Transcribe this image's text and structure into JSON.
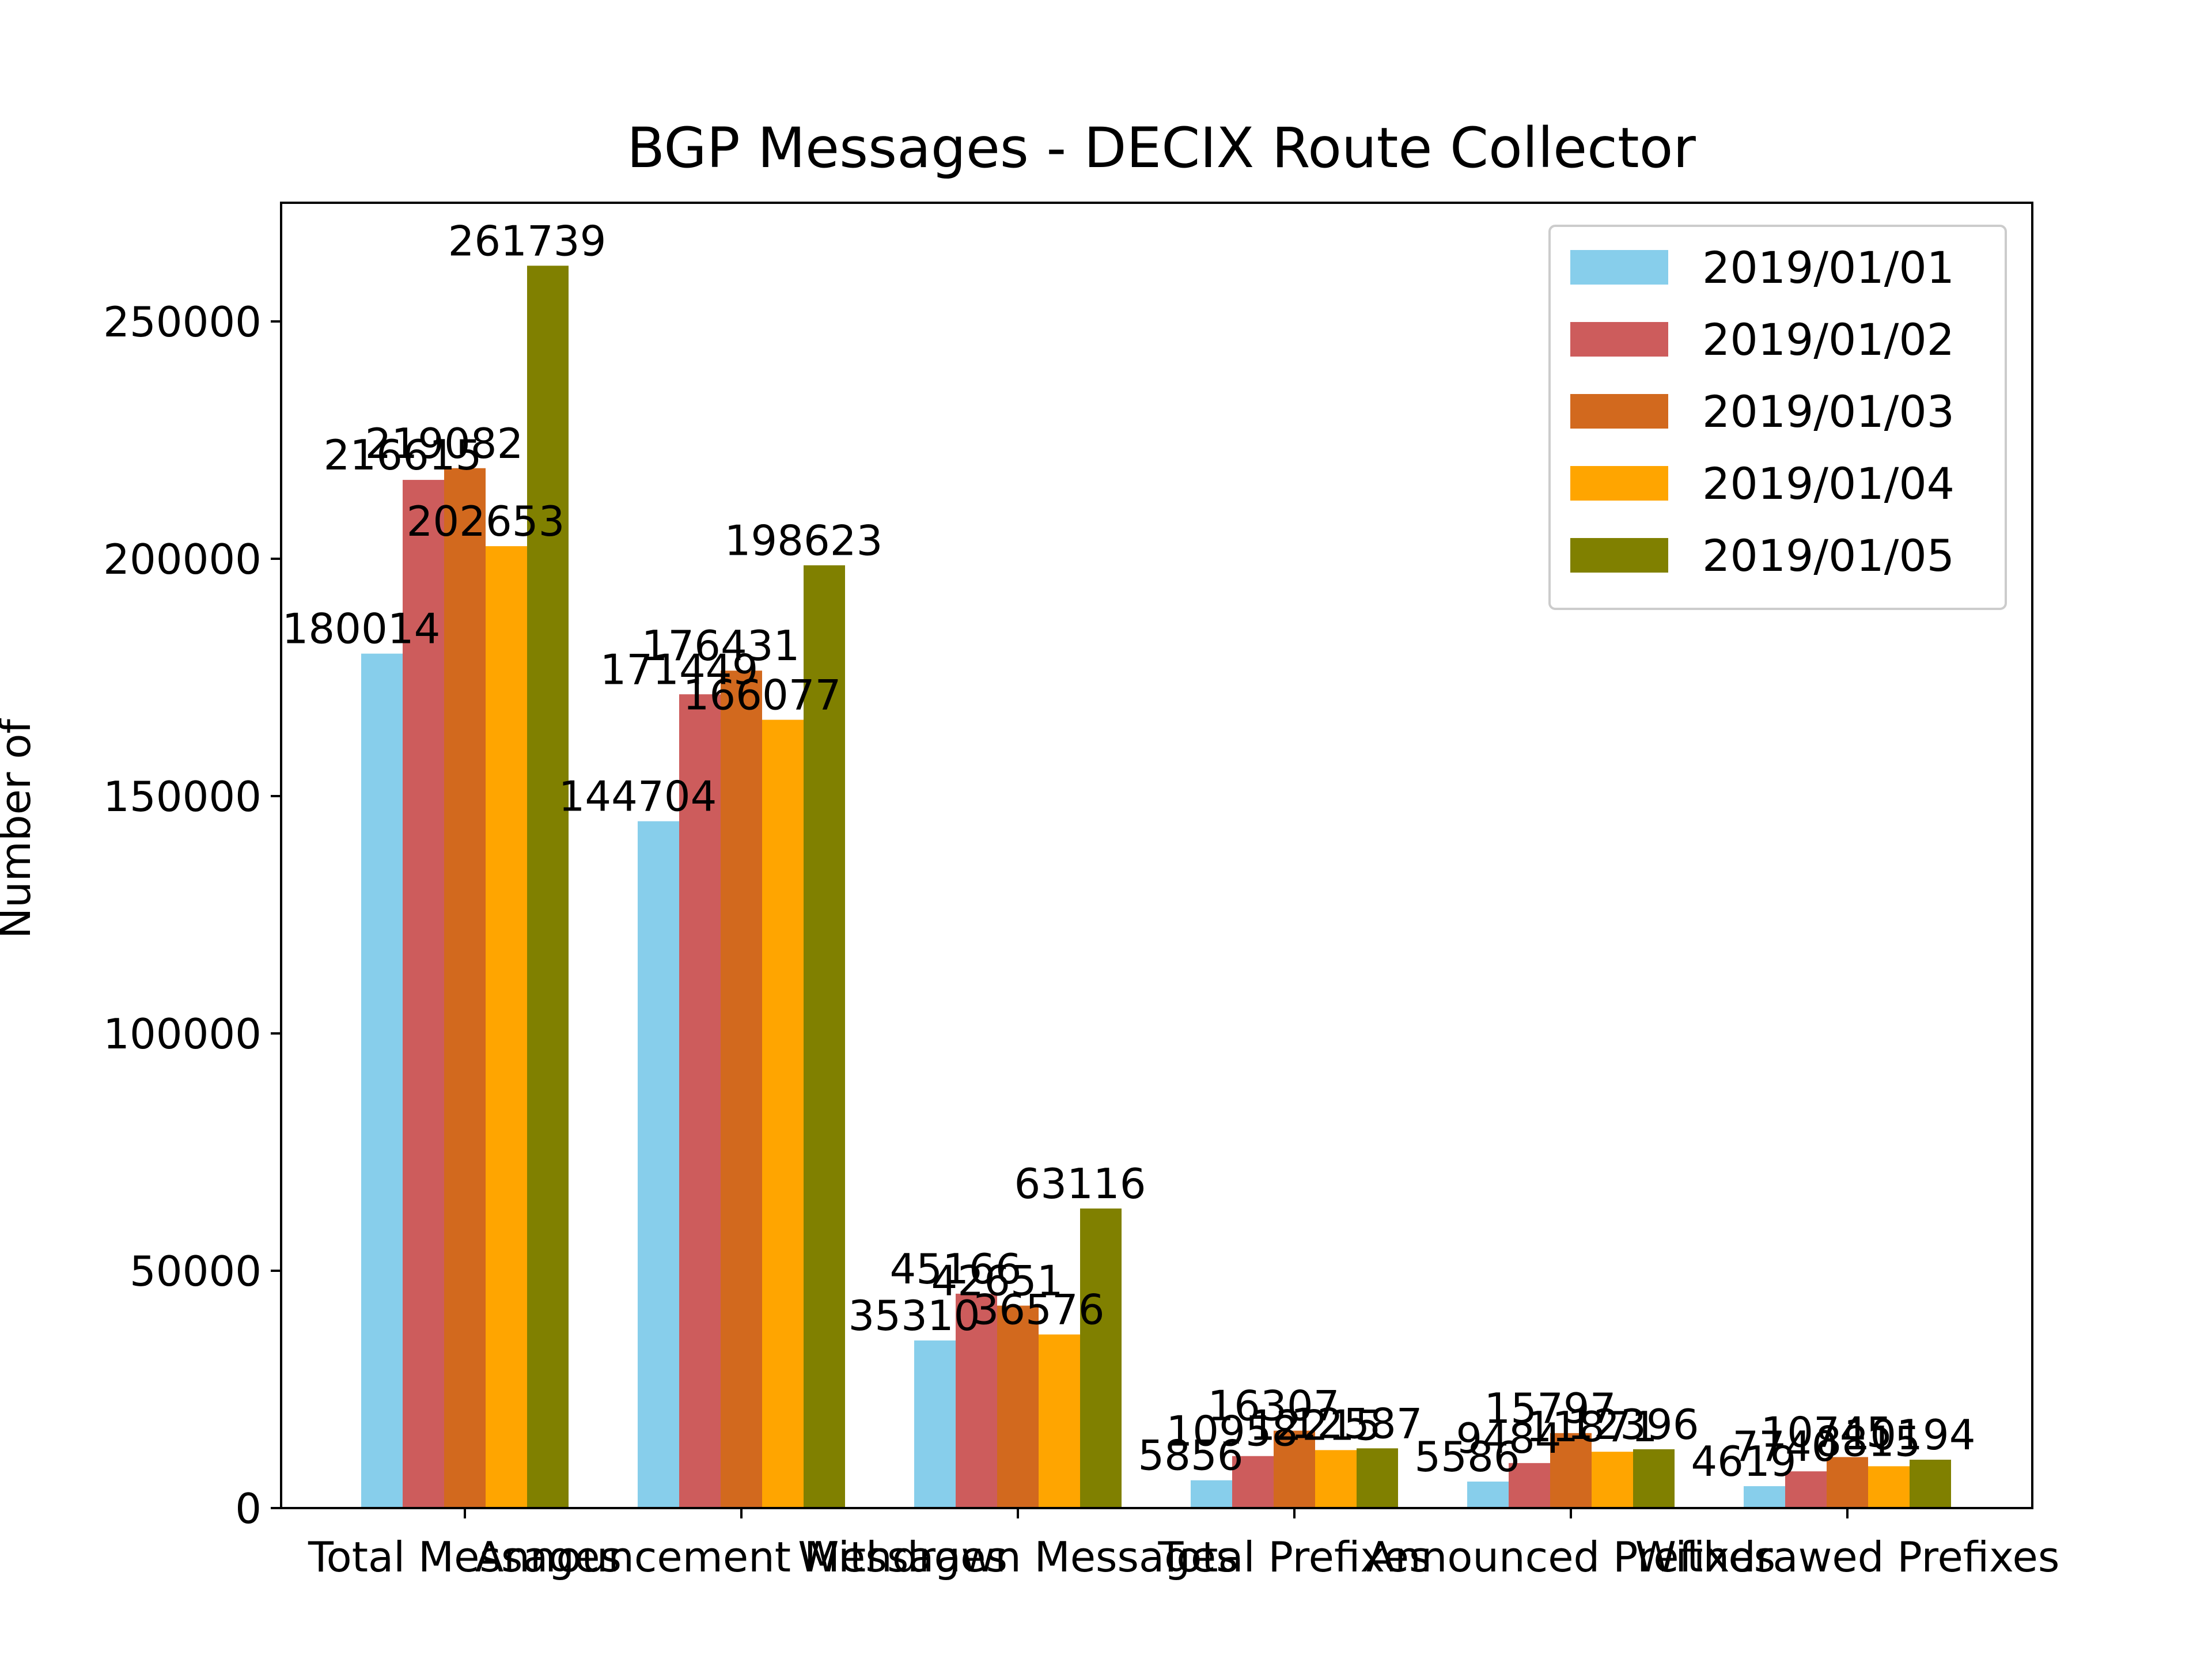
{
  "chart_data": {
    "type": "bar",
    "title": "BGP Messages - DECIX Route Collector",
    "xlabel": "",
    "ylabel": "Number of",
    "categories": [
      "Total Messages",
      "Announcement Messages",
      "Withdrawn Messages",
      "Total Prefixes",
      "Announced Prefixes",
      "Withdrawed Prefixes"
    ],
    "series": [
      {
        "name": "2019/01/01",
        "color": "#87ceeb",
        "values": [
          180014,
          144704,
          35310,
          5856,
          5586,
          4619
        ]
      },
      {
        "name": "2019/01/02",
        "color": "#cd5c5c",
        "values": [
          216615,
          171449,
          45166,
          10958,
          9484,
          7740
        ]
      },
      {
        "name": "2019/01/03",
        "color": "#d2691e",
        "values": [
          219082,
          176431,
          42651,
          16307,
          15797,
          10745
        ]
      },
      {
        "name": "2019/01/04",
        "color": "#ffa500",
        "values": [
          202653,
          166077,
          36576,
          12215,
          11871,
          8815
        ]
      },
      {
        "name": "2019/01/05",
        "color": "#808000",
        "values": [
          261739,
          198623,
          63116,
          12587,
          12396,
          10194
        ]
      }
    ],
    "ylim": [
      0,
      275000
    ],
    "yticks": [
      0,
      50000,
      100000,
      150000,
      200000,
      250000
    ],
    "legend_position": "top-right",
    "grid": false
  }
}
